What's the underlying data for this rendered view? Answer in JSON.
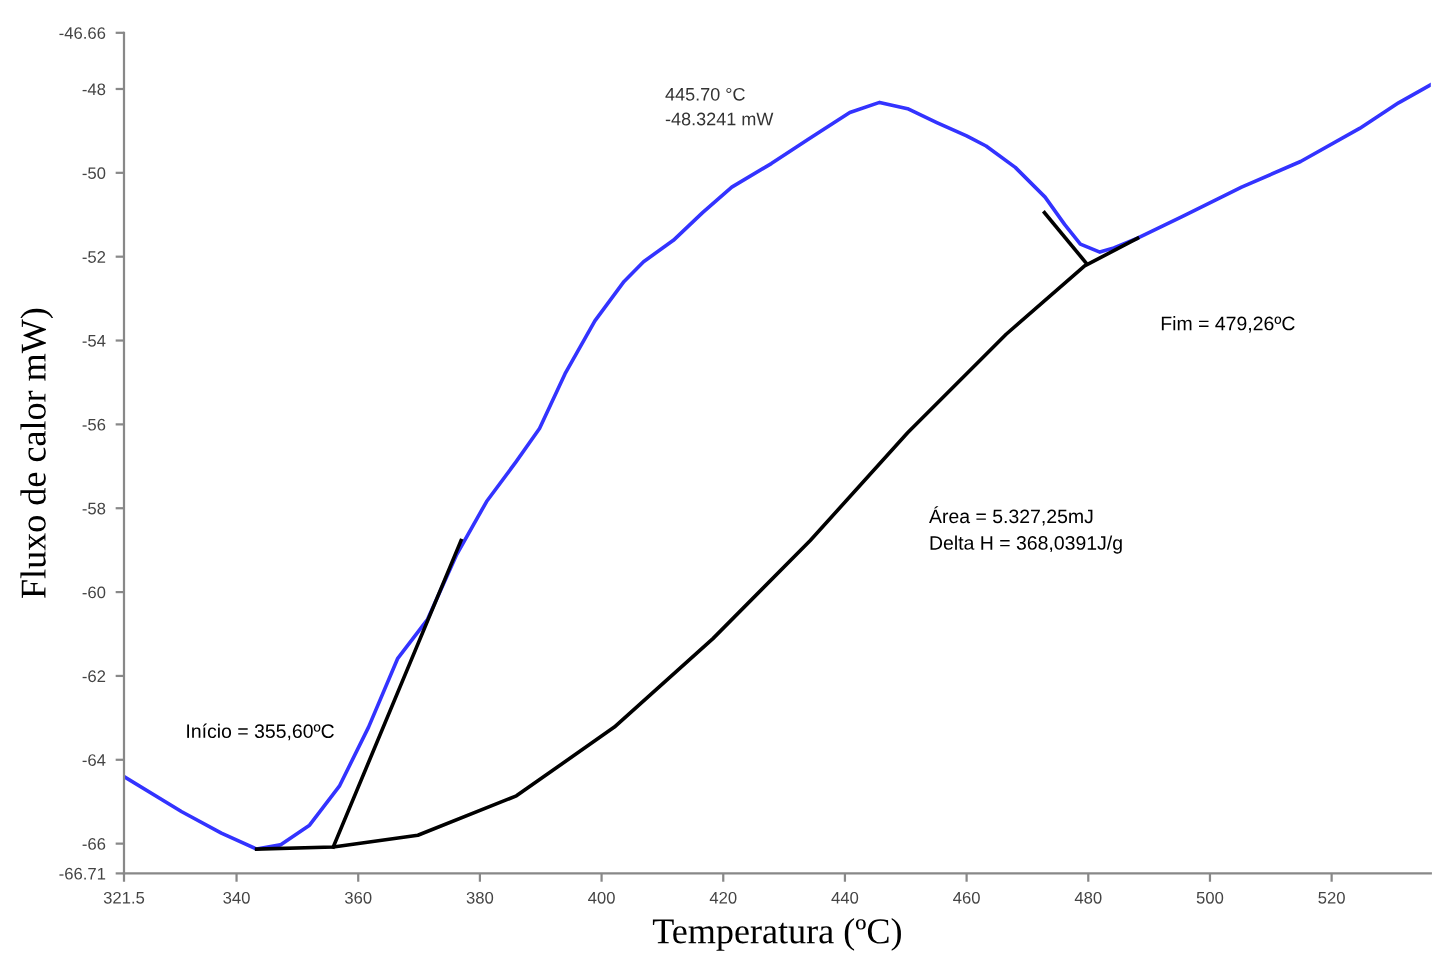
{
  "chart_data": {
    "type": "line",
    "xlabel": "Temperatura (ºC)",
    "ylabel": "Fluxo de calor mW)",
    "xlim": [
      321.5,
      536.3
    ],
    "xticks": [
      321.5,
      340,
      360,
      380,
      400,
      420,
      440,
      460,
      480,
      500,
      520
    ],
    "ylim": [
      -66.71,
      -46.66
    ],
    "yticks": [
      -66.71,
      -66,
      -64,
      -62,
      -60,
      -58,
      -56,
      -54,
      -52,
      -50,
      -48,
      -46.66
    ],
    "grid": false,
    "legend": false,
    "line_style": "solid",
    "marker": "none",
    "series": [
      {
        "color": "#3333ff",
        "x": [
          321.5,
          331.0,
          337.5,
          343.3,
          347.2,
          352.0,
          356.9,
          361.7,
          366.5,
          371.4,
          376.2,
          381.1,
          385.9,
          389.8,
          394.0,
          398.9,
          403.7,
          406.9,
          411.8,
          416.6,
          421.4,
          427.9,
          434.3,
          440.8,
          445.7,
          450.3,
          455.1,
          460.0,
          463.2,
          468.0,
          472.9,
          476.1,
          478.7,
          481.9,
          484.2,
          488.1,
          495.5,
          505.2,
          514.9,
          524.6,
          531.0,
          536.3
        ],
        "values": [
          -64.4,
          -65.24,
          -65.75,
          -66.13,
          -66.03,
          -65.56,
          -64.63,
          -63.22,
          -61.58,
          -60.65,
          -59.1,
          -57.84,
          -56.9,
          -56.1,
          -54.79,
          -53.53,
          -52.59,
          -52.12,
          -51.61,
          -50.95,
          -50.34,
          -49.78,
          -49.17,
          -48.56,
          -48.32,
          -48.47,
          -48.8,
          -49.12,
          -49.36,
          -49.87,
          -50.58,
          -51.23,
          -51.7,
          -51.89,
          -51.79,
          -51.56,
          -51.04,
          -50.34,
          -49.73,
          -48.94,
          -48.33,
          -47.9
        ]
      },
      {
        "color": "#000000",
        "x": [
          343.3,
          355.9,
          369.8,
          386.0,
          402.1,
          418.3,
          434.3,
          450.3,
          466.5,
          479.4,
          488.1
        ],
        "values": [
          -66.13,
          -66.08,
          -65.8,
          -64.86,
          -63.22,
          -61.11,
          -58.77,
          -56.2,
          -53.85,
          -52.22,
          -51.56
        ]
      },
      {
        "color": "#000000",
        "x": [
          355.9,
          376.9
        ],
        "values": [
          -66.08,
          -58.77
        ]
      },
      {
        "color": "#000000",
        "x": [
          472.8,
          479.7
        ],
        "values": [
          -50.95,
          -52.16
        ]
      }
    ],
    "annotations": [
      "445.70 °C\n-48.3241 mW",
      "Fim = 479,26ºC",
      "Área = 5.327,25mJ\nDelta H = 368,0391J/g",
      "Início = 355,60ºC"
    ]
  }
}
